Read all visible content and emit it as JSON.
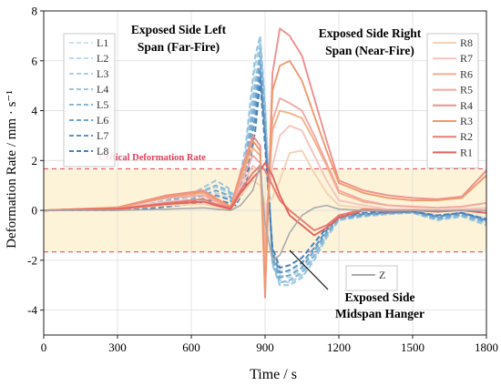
{
  "chart_data": {
    "type": "line",
    "xlabel": "Time / s",
    "ylabel": "Deformation Rate / mm · s⁻¹",
    "xlim": [
      0,
      1800
    ],
    "ylim": [
      -5,
      8
    ],
    "x_ticks": [
      "0",
      "300",
      "600",
      "900",
      "1200",
      "1500",
      "1800"
    ],
    "y_ticks": [
      "-4",
      "-2",
      "0",
      "2",
      "4",
      "6",
      "8"
    ],
    "grid": true,
    "critical_band": {
      "label": "Critical Deformation Rate",
      "upper": 1.67,
      "lower": -1.67,
      "fill": "#fdf3d8",
      "line_color": "#e0405a"
    },
    "annotations": {
      "left_group": [
        "Exposed Side Left",
        "Span (Far-Fire)"
      ],
      "right_group": [
        "Exposed Side Right",
        "Span (Near-Fire)"
      ],
      "hanger": [
        "Exposed Side",
        "Midspan Hanger"
      ]
    },
    "legend_left_placement": "top-left",
    "legend_right_placement": "top-right",
    "legend_z_placement": "bottom-center",
    "series": [
      {
        "name": "L1",
        "group": "left",
        "color": "#cfe3ef",
        "x": [
          0,
          300,
          450,
          600,
          700,
          750,
          780,
          820,
          860,
          880,
          900,
          930,
          960,
          1000,
          1050,
          1100,
          1150,
          1200,
          1300,
          1400,
          1500,
          1600,
          1700,
          1800
        ],
        "y": [
          0,
          0.02,
          0.15,
          0.35,
          0.45,
          0.3,
          0.2,
          1.3,
          4.5,
          5.5,
          3.2,
          -1.5,
          -2.4,
          -2.5,
          -2.2,
          -1.5,
          -0.8,
          -0.3,
          -0.15,
          -0.1,
          -0.05,
          -0.2,
          -0.1,
          -0.3
        ]
      },
      {
        "name": "L2",
        "group": "left",
        "color": "#bfdaea",
        "x": [
          0,
          300,
          450,
          600,
          700,
          750,
          780,
          820,
          860,
          880,
          900,
          930,
          960,
          1000,
          1050,
          1100,
          1150,
          1200,
          1300,
          1400,
          1500,
          1600,
          1700,
          1800
        ],
        "y": [
          0,
          0.03,
          0.2,
          0.45,
          0.7,
          0.5,
          0.3,
          1.8,
          5.2,
          6.2,
          3.6,
          -1.8,
          -2.6,
          -2.7,
          -2.4,
          -1.7,
          -0.9,
          -0.3,
          -0.2,
          -0.1,
          -0.1,
          -0.3,
          -0.2,
          -0.4
        ]
      },
      {
        "name": "L3",
        "group": "left",
        "color": "#add0e6",
        "x": [
          0,
          300,
          450,
          600,
          700,
          750,
          780,
          820,
          860,
          880,
          900,
          930,
          960,
          1000,
          1050,
          1100,
          1150,
          1200,
          1300,
          1400,
          1500,
          1600,
          1700,
          1800
        ],
        "y": [
          0,
          0.03,
          0.25,
          0.55,
          0.95,
          0.7,
          0.4,
          2.2,
          5.8,
          6.8,
          4.0,
          -2.0,
          -2.8,
          -2.9,
          -2.6,
          -1.9,
          -1.0,
          -0.35,
          -0.2,
          -0.15,
          -0.1,
          -0.35,
          -0.2,
          -0.5
        ]
      },
      {
        "name": "L4",
        "group": "left",
        "color": "#9ac6e0",
        "x": [
          0,
          300,
          450,
          600,
          700,
          750,
          780,
          820,
          860,
          880,
          900,
          930,
          960,
          1000,
          1050,
          1100,
          1150,
          1200,
          1300,
          1400,
          1500,
          1600,
          1700,
          1800
        ],
        "y": [
          0,
          0.04,
          0.3,
          0.65,
          1.2,
          0.9,
          0.5,
          2.5,
          6.2,
          7.0,
          4.3,
          -2.2,
          -3.0,
          -3.0,
          -2.7,
          -2.0,
          -1.1,
          -0.4,
          -0.25,
          -0.15,
          -0.1,
          -0.4,
          -0.25,
          -0.6
        ]
      },
      {
        "name": "L5",
        "group": "left",
        "color": "#86b8d8",
        "x": [
          0,
          300,
          450,
          600,
          700,
          750,
          780,
          820,
          860,
          880,
          900,
          930,
          960,
          1000,
          1050,
          1100,
          1150,
          1200,
          1300,
          1400,
          1500,
          1600,
          1700,
          1800
        ],
        "y": [
          0,
          0.03,
          0.25,
          0.6,
          1.0,
          0.8,
          0.45,
          2.0,
          5.0,
          6.5,
          3.9,
          -2.1,
          -2.9,
          -2.8,
          -2.5,
          -1.8,
          -1.0,
          -0.35,
          -0.2,
          -0.1,
          -0.1,
          -0.35,
          -0.2,
          -0.5
        ]
      },
      {
        "name": "L6",
        "group": "left",
        "color": "#6fa6cf",
        "x": [
          0,
          300,
          450,
          600,
          700,
          750,
          780,
          820,
          860,
          880,
          900,
          930,
          960,
          1000,
          1050,
          1100,
          1150,
          1200,
          1300,
          1400,
          1500,
          1600,
          1700,
          1800
        ],
        "y": [
          0,
          0.02,
          0.2,
          0.45,
          0.8,
          0.6,
          0.35,
          1.6,
          4.4,
          6.0,
          3.4,
          -1.9,
          -2.7,
          -2.6,
          -2.3,
          -1.6,
          -0.9,
          -0.3,
          -0.2,
          -0.1,
          -0.05,
          -0.3,
          -0.15,
          -0.45
        ]
      },
      {
        "name": "L7",
        "group": "left",
        "color": "#5a93c2",
        "x": [
          0,
          300,
          450,
          600,
          700,
          750,
          780,
          820,
          860,
          880,
          900,
          930,
          960,
          1000,
          1050,
          1100,
          1150,
          1200,
          1300,
          1400,
          1500,
          1600,
          1700,
          1800
        ],
        "y": [
          0,
          0.02,
          0.15,
          0.35,
          0.6,
          0.45,
          0.25,
          1.2,
          3.8,
          5.6,
          3.0,
          -1.7,
          -2.5,
          -2.4,
          -2.1,
          -1.5,
          -0.8,
          -0.25,
          -0.15,
          -0.1,
          -0.05,
          -0.25,
          -0.1,
          -0.4
        ]
      },
      {
        "name": "L8",
        "group": "left",
        "color": "#4a80b4",
        "x": [
          0,
          300,
          450,
          600,
          700,
          750,
          780,
          820,
          860,
          880,
          900,
          930,
          960,
          1000,
          1050,
          1100,
          1150,
          1200,
          1300,
          1400,
          1500,
          1600,
          1700,
          1800
        ],
        "y": [
          0,
          0.01,
          0.1,
          0.25,
          0.45,
          0.3,
          0.2,
          0.9,
          3.2,
          5.2,
          2.6,
          -1.5,
          -2.3,
          -2.2,
          -1.9,
          -1.3,
          -0.7,
          -0.2,
          -0.1,
          -0.05,
          -0.05,
          -0.2,
          -0.1,
          -0.35
        ]
      },
      {
        "name": "R8",
        "group": "right",
        "color": "#f7d2b4",
        "x": [
          0,
          300,
          500,
          650,
          700,
          760,
          800,
          850,
          880,
          900,
          930,
          960,
          1000,
          1050,
          1100,
          1150,
          1200,
          1300,
          1400,
          1500,
          1600,
          1700,
          1800
        ],
        "y": [
          0,
          0.05,
          0.2,
          0.25,
          0.15,
          0.05,
          0.6,
          1.2,
          1.0,
          0.2,
          0.5,
          1.2,
          2.3,
          2.4,
          1.5,
          0.7,
          0.2,
          0.1,
          0.0,
          0.05,
          0.0,
          0.0,
          0.05
        ]
      },
      {
        "name": "R7",
        "group": "right",
        "color": "#f6c3c0",
        "x": [
          0,
          300,
          500,
          650,
          700,
          760,
          800,
          850,
          880,
          900,
          930,
          960,
          1000,
          1050,
          1100,
          1150,
          1200,
          1300,
          1400,
          1500,
          1600,
          1700,
          1800
        ],
        "y": [
          0,
          0.07,
          0.35,
          0.45,
          0.2,
          0.1,
          0.9,
          1.8,
          1.5,
          -0.3,
          1.8,
          3.0,
          3.4,
          3.2,
          2.2,
          1.2,
          0.4,
          0.2,
          0.05,
          0.05,
          0.0,
          0.05,
          0.1
        ]
      },
      {
        "name": "R6",
        "group": "right",
        "color": "#f4b089",
        "x": [
          0,
          300,
          500,
          650,
          700,
          760,
          800,
          850,
          880,
          900,
          930,
          960,
          1000,
          1050,
          1100,
          1150,
          1200,
          1300,
          1400,
          1500,
          1600,
          1700,
          1800
        ],
        "y": [
          0,
          0.1,
          0.55,
          0.7,
          0.4,
          0.15,
          1.3,
          2.5,
          2.2,
          -1.5,
          3.2,
          4.0,
          3.9,
          3.7,
          2.8,
          1.8,
          0.7,
          0.35,
          0.2,
          0.15,
          0.1,
          0.15,
          0.3
        ]
      },
      {
        "name": "R5",
        "group": "right",
        "color": "#f3a8a2",
        "x": [
          0,
          300,
          500,
          650,
          700,
          760,
          800,
          850,
          880,
          900,
          930,
          960,
          1000,
          1050,
          1100,
          1150,
          1200,
          1300,
          1400,
          1500,
          1600,
          1700,
          1800
        ],
        "y": [
          0,
          0.1,
          0.5,
          0.6,
          0.35,
          0.1,
          1.1,
          2.2,
          1.9,
          -2.0,
          3.6,
          4.5,
          4.3,
          4.0,
          3.0,
          1.9,
          0.8,
          0.4,
          0.2,
          0.15,
          0.1,
          0.15,
          0.3
        ]
      },
      {
        "name": "R4",
        "group": "right",
        "color": "#f08f8f",
        "x": [
          0,
          300,
          500,
          650,
          700,
          760,
          800,
          850,
          880,
          900,
          930,
          960,
          1000,
          1050,
          1100,
          1150,
          1200,
          1300,
          1400,
          1500,
          1600,
          1700,
          1800
        ],
        "y": [
          0,
          0.12,
          0.6,
          0.8,
          0.5,
          0.15,
          1.5,
          3.0,
          2.6,
          -3.5,
          5.5,
          7.3,
          7.0,
          6.2,
          4.5,
          2.8,
          1.2,
          0.8,
          0.6,
          0.5,
          0.45,
          0.55,
          1.6
        ]
      },
      {
        "name": "R3",
        "group": "right",
        "color": "#ee9a6e",
        "x": [
          0,
          300,
          500,
          650,
          700,
          760,
          800,
          850,
          880,
          900,
          930,
          960,
          1000,
          1050,
          1100,
          1150,
          1200,
          1300,
          1400,
          1500,
          1600,
          1700,
          1800
        ],
        "y": [
          0,
          0.11,
          0.55,
          0.75,
          0.45,
          0.15,
          1.4,
          2.8,
          2.4,
          -3.2,
          4.8,
          5.8,
          6.0,
          5.2,
          3.8,
          2.4,
          1.1,
          0.7,
          0.5,
          0.4,
          0.4,
          0.5,
          1.4
        ]
      },
      {
        "name": "R2",
        "group": "right",
        "color": "#ea7b70",
        "x": [
          0,
          300,
          500,
          650,
          700,
          760,
          800,
          850,
          880,
          900,
          930,
          960,
          1000,
          1050,
          1100,
          1150,
          1200,
          1300,
          1400,
          1500,
          1600,
          1700,
          1800
        ],
        "y": [
          0,
          0.06,
          0.3,
          0.45,
          0.25,
          0.1,
          0.8,
          1.5,
          1.8,
          1.6,
          1.0,
          0.4,
          0.0,
          -0.4,
          -0.8,
          -0.6,
          -0.2,
          0.05,
          0.0,
          0.0,
          -0.05,
          0.0,
          -0.1
        ]
      },
      {
        "name": "R1",
        "group": "right",
        "color": "#e6625a",
        "x": [
          0,
          300,
          500,
          650,
          700,
          760,
          800,
          850,
          880,
          900,
          930,
          960,
          1000,
          1050,
          1100,
          1150,
          1200,
          1300,
          1400,
          1500,
          1600,
          1700,
          1800
        ],
        "y": [
          0,
          0.05,
          0.25,
          0.35,
          0.2,
          0.05,
          0.7,
          1.3,
          1.6,
          1.9,
          1.4,
          0.6,
          -0.2,
          -0.6,
          -1.0,
          -0.7,
          -0.3,
          0.0,
          -0.05,
          0.0,
          -0.05,
          0.0,
          -0.1
        ]
      },
      {
        "name": "Z",
        "group": "hanger",
        "color": "#aaaaaa",
        "x": [
          0,
          300,
          500,
          650,
          700,
          760,
          800,
          850,
          880,
          900,
          930,
          960,
          1000,
          1050,
          1100,
          1150,
          1200,
          1300,
          1400,
          1500,
          1600,
          1700,
          1800
        ],
        "y": [
          0,
          0.0,
          0.05,
          0.1,
          0.05,
          0.0,
          0.2,
          0.8,
          1.8,
          -0.5,
          -2.0,
          -1.8,
          -0.9,
          -0.2,
          0.1,
          0.2,
          0.05,
          0.0,
          0.0,
          0.0,
          0.0,
          0.0,
          0.0
        ]
      }
    ]
  }
}
